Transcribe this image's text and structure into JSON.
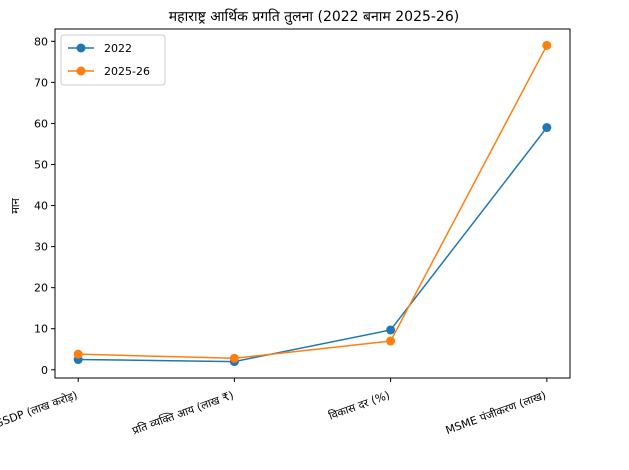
{
  "chart_data": {
    "type": "line",
    "title": "महाराष्ट्र आर्थिक प्रगति तुलना (2022 बनाम 2025-26)",
    "xlabel": "",
    "ylabel": "मान",
    "categories": [
      "GSDP (लाख करोड़)",
      "प्रति व्यक्ति आय (लाख ₹)",
      "विकास दर (%)",
      "MSME पंजीकरण (लाख)"
    ],
    "ylim": [
      -2,
      83
    ],
    "yticks": [
      0,
      10,
      20,
      30,
      40,
      50,
      60,
      70,
      80
    ],
    "grid": false,
    "legend_position": "top-left",
    "series": [
      {
        "name": "2022",
        "values": [
          2.5,
          2.0,
          9.7,
          59.0
        ],
        "color": "#1f77b4"
      },
      {
        "name": "2025-26",
        "values": [
          3.8,
          2.8,
          7.0,
          79.0
        ],
        "color": "#ff7f0e"
      }
    ]
  }
}
